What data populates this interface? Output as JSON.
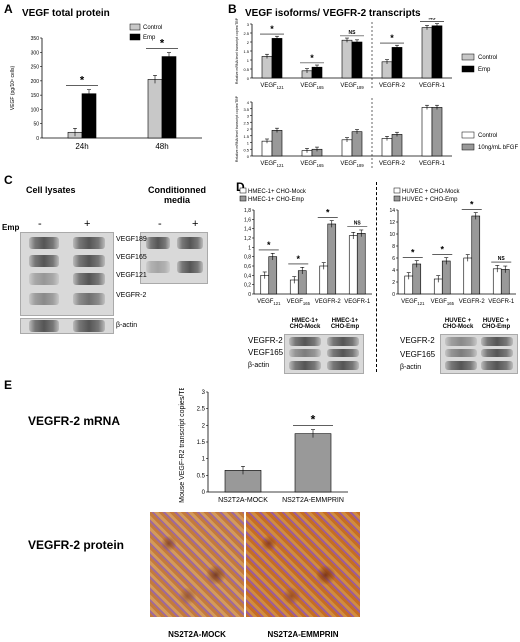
{
  "panels": {
    "A": {
      "letter": "A",
      "title": "VEGF total protein"
    },
    "B": {
      "letter": "B",
      "title": "VEGF isoforms/ VEGFR-2 transcripts"
    },
    "C": {
      "letter": "C",
      "left_title": "Cell lysates",
      "right_title": "Conditionned media",
      "emp_label": "Emp",
      "minus": "-",
      "plus": "+",
      "bands": [
        "VEGF189",
        "VEGF165",
        "VEGF121",
        "VEGFR-2",
        "β-actin"
      ]
    },
    "D": {
      "letter": "D"
    },
    "E": {
      "letter": "E",
      "row1": "VEGFR-2 mRNA",
      "row2": "VEGFR-2 protein",
      "img_left": "NS2T2A-MOCK",
      "img_right": "NS2T2A-EMMPRIN"
    }
  },
  "chart_data": [
    {
      "id": "A",
      "type": "bar",
      "title": "VEGF total protein",
      "ylabel": "VEGF (pg/10⁶ cells)",
      "ylim": [
        0,
        350
      ],
      "yticks": [
        0,
        50,
        100,
        150,
        200,
        250,
        300,
        350
      ],
      "categories": [
        "24h",
        "48h"
      ],
      "series": [
        {
          "name": "Control",
          "color": "#c8c8c8",
          "values": [
            20,
            205
          ]
        },
        {
          "name": "Emp",
          "color": "#000000",
          "values": [
            155,
            285
          ]
        }
      ],
      "significance": [
        "*",
        "*"
      ],
      "legend": "top-left"
    },
    {
      "id": "B1",
      "type": "bar",
      "ylabel": "Relative mRNA level transcript copies/TBP",
      "ylim": [
        0,
        3
      ],
      "yticks": [
        0,
        0.5,
        1,
        1.5,
        2,
        2.5,
        3
      ],
      "categories": [
        "VEGF121",
        "VEGF165",
        "VEGF189",
        "VEGFR-2",
        "VEGFR-1"
      ],
      "series": [
        {
          "name": "Control",
          "color": "#c8c8c8",
          "values": [
            1.2,
            0.4,
            2.1,
            0.9,
            2.8
          ]
        },
        {
          "name": "Emp",
          "color": "#000000",
          "values": [
            2.2,
            0.6,
            2.0,
            1.7,
            2.9
          ]
        }
      ],
      "significance": [
        "*",
        "*",
        "NS",
        "*",
        "NS"
      ],
      "legend": "right"
    },
    {
      "id": "B2",
      "type": "bar",
      "ylabel": "Relative mRNA level transcript copies/TBP",
      "ylim": [
        0,
        4
      ],
      "yticks": [
        0,
        0.5,
        1,
        1.5,
        2,
        2.5,
        3,
        3.5,
        4
      ],
      "categories": [
        "VEGF121",
        "VEGF165",
        "VEGF189",
        "VEGFR-2",
        "VEGFR-1"
      ],
      "series": [
        {
          "name": "Control",
          "color": "#ffffff",
          "values": [
            1.1,
            0.4,
            1.2,
            1.3,
            3.6
          ]
        },
        {
          "name": "10ng/mL bFGF",
          "color": "#999999",
          "values": [
            1.9,
            0.5,
            1.8,
            1.6,
            3.6
          ]
        }
      ],
      "legend": "right"
    },
    {
      "id": "D1",
      "type": "bar",
      "ylim": [
        0,
        1.8
      ],
      "yticks": [
        0,
        0.2,
        0.4,
        0.6,
        0.8,
        1,
        1.2,
        1.4,
        1.6,
        1.8
      ],
      "categories": [
        "VEGF121",
        "VEGF165",
        "VEGFR-2",
        "VEGFR-1"
      ],
      "series": [
        {
          "name": "HMEC-1+ CHO-Mock",
          "color": "#ffffff",
          "values": [
            0.4,
            0.3,
            0.6,
            1.25
          ]
        },
        {
          "name": "HMEC-1+ CHO-Emp",
          "color": "#999999",
          "values": [
            0.8,
            0.5,
            1.5,
            1.3
          ]
        }
      ],
      "significance": [
        "*",
        "*",
        "*",
        "NS"
      ],
      "legend": "top-left"
    },
    {
      "id": "D2",
      "type": "bar",
      "ylim": [
        0,
        14
      ],
      "yticks": [
        0,
        2,
        4,
        6,
        8,
        10,
        12,
        14
      ],
      "categories": [
        "VEGF121",
        "VEGF165",
        "VEGFR-2",
        "VEGFR-1"
      ],
      "series": [
        {
          "name": "HUVEC + CHO-Mock",
          "color": "#ffffff",
          "values": [
            3,
            2.5,
            6,
            4.2
          ]
        },
        {
          "name": "HUVEC + CHO-Emp",
          "color": "#999999",
          "values": [
            5,
            5.5,
            13,
            4.1
          ]
        }
      ],
      "significance": [
        "*",
        "*",
        "*",
        "NS"
      ],
      "legend": "top-left"
    },
    {
      "id": "E",
      "type": "bar",
      "ylabel": "Mouse VEGF-R2 transcript copies/TBP",
      "ylim": [
        0,
        3
      ],
      "yticks": [
        0,
        0.5,
        1,
        1.5,
        2,
        2.5,
        3
      ],
      "categories": [
        "NS2T2A-MOCK",
        "NS2T2A-EMMPRIN"
      ],
      "series": [
        {
          "name": "",
          "color": "#999999",
          "values": [
            0.65,
            1.75
          ]
        }
      ],
      "significance": [
        "",
        "*"
      ]
    }
  ],
  "blot_labels": {
    "D_left": {
      "lanes": [
        "HMEC-1+ CHO-Mock",
        "HMEC-1+ CHO-Emp"
      ],
      "rows": [
        "VEGFR-2",
        "VEGF165",
        "β-actin"
      ]
    },
    "D_right": {
      "lanes": [
        "HUVEC + CHO-Mock",
        "HUVEC + CHO-Emp"
      ],
      "rows": [
        "VEGFR-2",
        "VEGF165",
        "β-actin"
      ]
    }
  }
}
